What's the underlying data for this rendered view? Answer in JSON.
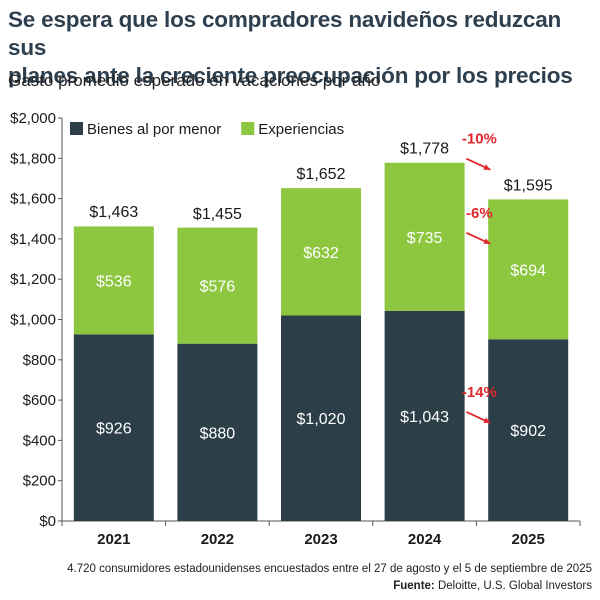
{
  "header": {
    "title_line1": "Se espera que los compradores navideños reduzcan sus",
    "title_line2": "planes ante la creciente preocupación por los precios",
    "subtitle": "Gasto promedio esperado en vacaciones por año"
  },
  "chart_data": {
    "type": "bar",
    "stacked": true,
    "categories": [
      "2021",
      "2022",
      "2023",
      "2024",
      "2025"
    ],
    "series": [
      {
        "name": "Bienes al por menor",
        "values": [
          926,
          880,
          1020,
          1043,
          902
        ],
        "labels": [
          "$926",
          "$880",
          "$1,020",
          "$1,043",
          "$902"
        ],
        "color": "#2c3e48"
      },
      {
        "name": "Experiencias",
        "values": [
          536,
          576,
          632,
          735,
          694
        ],
        "labels": [
          "$536",
          "$576",
          "$632",
          "$735",
          "$694"
        ],
        "color": "#8dc63f"
      }
    ],
    "totals": [
      1463,
      1455,
      1652,
      1778,
      1595
    ],
    "total_labels": [
      "$1,463",
      "$1,455",
      "$1,652",
      "$1,778",
      "$1,595"
    ],
    "ylim": [
      0,
      2000
    ],
    "yticks": [
      0,
      200,
      400,
      600,
      800,
      1000,
      1200,
      1400,
      1600,
      1800,
      2000
    ],
    "ytick_labels": [
      "$0",
      "$200",
      "$400",
      "$600",
      "$800",
      "$1,000",
      "$1,200",
      "$1,400",
      "$1,600",
      "$1,800",
      "$2,000"
    ],
    "legend_position": "top-left",
    "grid": false,
    "annotations": [
      {
        "text": "-10%",
        "ref": "total",
        "color": "#e0262b"
      },
      {
        "text": "-6%",
        "ref": "Experiencias",
        "color": "#e0262b"
      },
      {
        "text": "-14%",
        "ref": "Bienes al por menor",
        "color": "#e0262b"
      }
    ]
  },
  "footer": {
    "note": "4.720 consumidores estadounidenses encuestados entre el 27 de agosto y el 5 de septiembre de 2025",
    "source_label": "Fuente:",
    "source_text": " Deloitte, U.S. Global Investors"
  }
}
